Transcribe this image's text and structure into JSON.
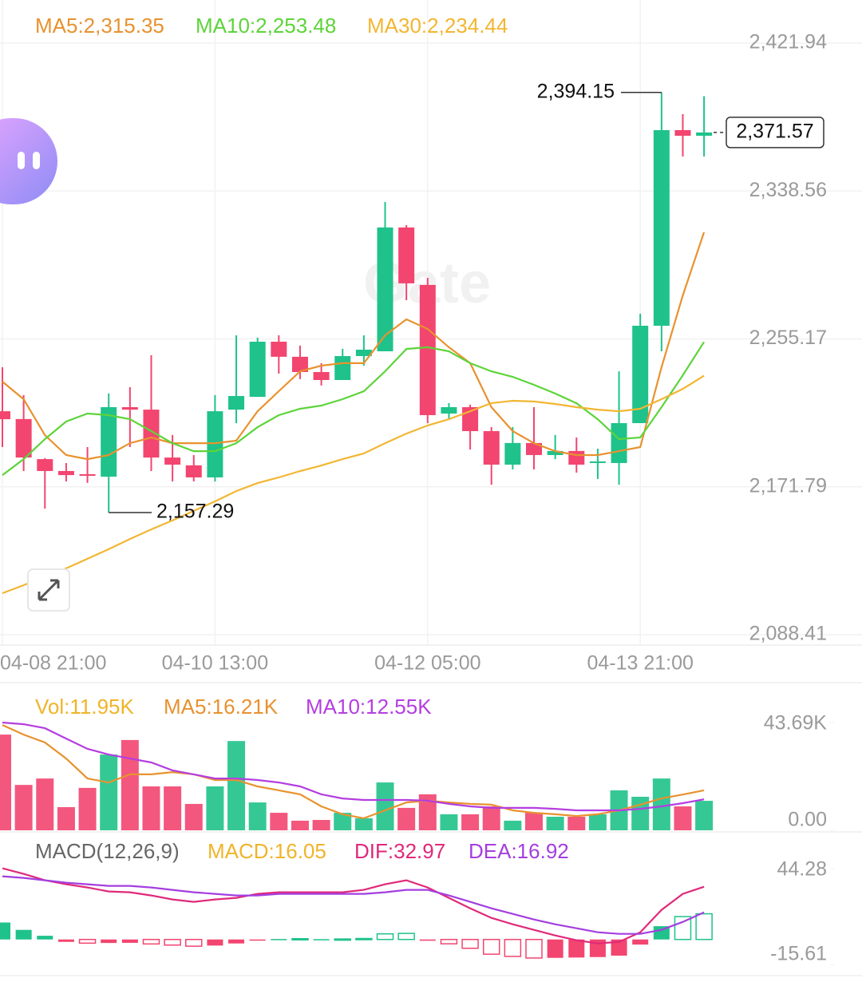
{
  "chart_data": [
    {
      "type": "candlestick",
      "categories": [
        "04-08 21:00",
        null,
        null,
        null,
        null,
        null,
        null,
        null,
        null,
        null,
        "04-10 13:00",
        null,
        null,
        null,
        null,
        null,
        null,
        null,
        null,
        null,
        "04-12 05:00",
        null,
        null,
        null,
        null,
        null,
        null,
        null,
        null,
        null,
        "04-13 21:00",
        null,
        null,
        null
      ],
      "open": [
        2214.4,
        2210.0,
        2187.4,
        2180.7,
        2178.9,
        2177.5,
        2216.7,
        2215.3,
        2188.3,
        2183.9,
        2177.1,
        2215.3,
        2222.5,
        2253.6,
        2245.1,
        2236.5,
        2232.0,
        2245.5,
        2248.2,
        2318.0,
        2285.6,
        2213.1,
        2216.7,
        2203.2,
        2184.3,
        2196.5,
        2189.7,
        2192.0,
        2185.2,
        2185.2,
        2207.7,
        2262.6,
        2372.9,
        2369.7
      ],
      "high": [
        2239.2,
        2223.5,
        2188.0,
        2185.2,
        2194.2,
        2224.4,
        2228.0,
        2246.0,
        2201.0,
        2189.7,
        2223.5,
        2257.2,
        2255.9,
        2257.2,
        2251.4,
        2241.5,
        2249.6,
        2257.2,
        2332.4,
        2319.3,
        2289.6,
        2219.0,
        2218.1,
        2205.5,
        2205.5,
        2216.7,
        2201.0,
        2199.6,
        2193.3,
        2236.9,
        2269.4,
        2394.15,
        2381.9,
        2392.0
      ],
      "low": [
        2194.2,
        2180.7,
        2159.5,
        2174.8,
        2174.0,
        2157.29,
        2194.2,
        2180.7,
        2174.8,
        2174.8,
        2174.8,
        2207.7,
        2222.5,
        2235.6,
        2232.5,
        2228.9,
        2232.0,
        2240.1,
        2248.2,
        2277.0,
        2207.7,
        2209.5,
        2192.8,
        2173.0,
        2181.6,
        2181.6,
        2187.4,
        2179.8,
        2176.2,
        2173.0,
        2207.7,
        2248.2,
        2358.0,
        2358.0
      ],
      "close": [
        2209.9,
        2188.3,
        2180.7,
        2178.4,
        2178.0,
        2216.7,
        2215.3,
        2188.3,
        2184.3,
        2177.1,
        2214.4,
        2223.0,
        2253.6,
        2245.1,
        2236.5,
        2232.0,
        2245.5,
        2249.1,
        2318.0,
        2286.5,
        2212.2,
        2216.7,
        2203.2,
        2184.3,
        2196.5,
        2189.7,
        2192.0,
        2184.3,
        2186.1,
        2207.7,
        2262.6,
        2372.9,
        2369.7,
        2371.57
      ],
      "high_label": "2,394.15",
      "low_label": "2,157.29",
      "last_label": "2,371.57",
      "up_color": "#1fc28a",
      "down_color": "#f2456f",
      "series": [
        {
          "name": "MA5:2,315.35",
          "color": "#e8922f",
          "values": [
            2231.1,
            2221.2,
            2200.9,
            2189.7,
            2187.4,
            2189.7,
            2196.4,
            2199.6,
            2196.4,
            2196.4,
            2196.4,
            2197.8,
            2214.4,
            2225.7,
            2236.9,
            2240.1,
            2241.5,
            2241.5,
            2257.2,
            2266.2,
            2260.8,
            2250.5,
            2241.5,
            2216.7,
            2203.2,
            2196.4,
            2191.9,
            2189.7,
            2189.7,
            2191.9,
            2194.2,
            2239.2,
            2279.7,
            2315.35
          ]
        },
        {
          "name": "MA10:2,253.48",
          "color": "#5dd43a",
          "values": [
            2178.4,
            2187.4,
            2198.7,
            2208.6,
            2213.1,
            2212.2,
            2209.9,
            2203.2,
            2196.4,
            2191.9,
            2191.9,
            2196.4,
            2205.4,
            2212.2,
            2215.8,
            2217.6,
            2221.2,
            2225.7,
            2236.9,
            2249.5,
            2250.5,
            2248.2,
            2241.5,
            2236.9,
            2233.8,
            2229.3,
            2224.4,
            2218.9,
            2209.9,
            2198.7,
            2199.6,
            2216.7,
            2234.7,
            2253.48
          ]
        },
        {
          "name": "MA30:2,234.44",
          "color": "#f2b632",
          "values": [
            2111.8,
            2116.3,
            2121.3,
            2125.8,
            2131.2,
            2136.6,
            2142.4,
            2147.8,
            2152.8,
            2158.2,
            2163.6,
            2169.4,
            2173.9,
            2177.1,
            2180.7,
            2183.8,
            2187.4,
            2190.6,
            2196.4,
            2201.8,
            2206.4,
            2209.9,
            2214.4,
            2219.0,
            2220.3,
            2219.9,
            2218.5,
            2216.7,
            2215.3,
            2214.4,
            2215.8,
            2221.2,
            2227.0,
            2234.44
          ]
        }
      ],
      "ylim": [
        2088.41,
        2421.94
      ],
      "yticks": [
        {
          "value": 2088.41,
          "label": "2,088.41"
        },
        {
          "value": 2171.79,
          "label": "2,171.79"
        },
        {
          "value": 2255.17,
          "label": "2,255.17"
        },
        {
          "value": 2338.56,
          "label": "2,338.56"
        },
        {
          "value": 2421.94,
          "label": "2,421.94"
        }
      ],
      "grid": true,
      "watermark": "Gate"
    },
    {
      "type": "bar",
      "name": "Vol:11.95K",
      "color": "#f0b429",
      "values": [
        38800,
        18400,
        21000,
        9400,
        17200,
        30700,
        36600,
        17800,
        17800,
        10700,
        17800,
        36200,
        11300,
        7100,
        3900,
        4200,
        7100,
        4900,
        19400,
        9100,
        14600,
        6500,
        6500,
        9700,
        3900,
        7100,
        5500,
        5500,
        6500,
        16200,
        13600,
        21000,
        9700,
        11950
      ],
      "series": [
        {
          "name": "MA5:16.21K",
          "color": "#e8922f",
          "values": [
            42700,
            38800,
            35600,
            29100,
            21000,
            19400,
            22700,
            22700,
            23600,
            22700,
            20400,
            20400,
            17800,
            16200,
            14600,
            9700,
            6500,
            4900,
            8100,
            11300,
            12000,
            11300,
            10700,
            10400,
            8100,
            7100,
            6500,
            5800,
            6500,
            8100,
            10400,
            12900,
            14500,
            16210
          ]
        },
        {
          "name": "MA10:12.55K",
          "color": "#b43ee0",
          "values": [
            43700,
            43000,
            41400,
            37200,
            33000,
            30700,
            29100,
            27500,
            24300,
            22700,
            21000,
            21000,
            20400,
            19400,
            17800,
            14600,
            12900,
            12300,
            12300,
            12300,
            12000,
            10700,
            9700,
            9100,
            9100,
            9100,
            8700,
            8100,
            8100,
            8100,
            8700,
            9700,
            11000,
            12550
          ]
        }
      ],
      "ylim": [
        0,
        43690
      ],
      "yticks": [
        {
          "value": 0,
          "label": "0.00"
        },
        {
          "value": 43690,
          "label": "43.69K"
        }
      ]
    },
    {
      "type": "macd",
      "title": "MACD(12,26,9)",
      "name": "MACD:16.05",
      "color": "#f0b429",
      "values": [
        10.6,
        6.0,
        2.3,
        -1.5,
        -2.3,
        -2.2,
        -2.1,
        -2.8,
        -3.5,
        -4.2,
        -3.8,
        -2.5,
        -0.3,
        0.3,
        0.5,
        0.2,
        0.3,
        0.6,
        3.5,
        3.8,
        -0.8,
        -2.7,
        -5.5,
        -9.2,
        -10.6,
        -11.6,
        -11.5,
        -11.3,
        -11.0,
        -10.1,
        -3.2,
        8.3,
        14.3,
        16.05
      ],
      "series": [
        {
          "name": "DIF:32.97",
          "color": "#e0297a",
          "values": [
            44.5,
            41,
            37,
            34.5,
            32.5,
            30,
            29.5,
            27.5,
            25,
            23.5,
            25,
            26,
            28.5,
            29.5,
            29.5,
            29.5,
            29.5,
            31,
            34.5,
            37,
            32.5,
            26,
            19.5,
            13.5,
            9.5,
            6,
            2.5,
            -0.5,
            -2.5,
            -1.5,
            4.5,
            18.5,
            28.5,
            32.97
          ]
        },
        {
          "name": "DEA:16.92",
          "color": "#a43ee0",
          "values": [
            39.5,
            38.5,
            37,
            35.5,
            34.5,
            33.5,
            33.5,
            32.5,
            31,
            29.5,
            28.5,
            27.5,
            27.5,
            28.5,
            28.5,
            28.5,
            28.5,
            28.5,
            29.5,
            31,
            31,
            27.5,
            23.5,
            19.5,
            16,
            12.5,
            9.5,
            7,
            4.5,
            3.5,
            3.5,
            6,
            11,
            16.92
          ]
        }
      ],
      "ylim": [
        -15.61,
        44.28
      ],
      "yticks": [
        -15.61,
        44.28
      ]
    }
  ]
}
